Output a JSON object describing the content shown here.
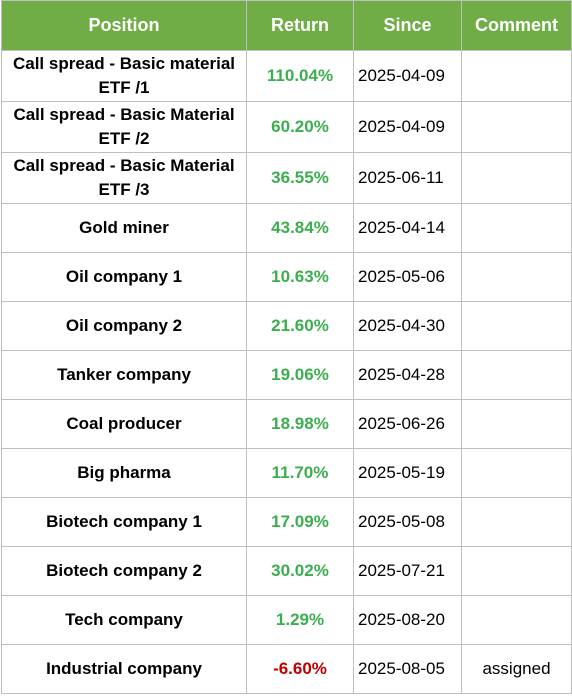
{
  "headers": {
    "position": "Position",
    "return": "Return",
    "since": "Since",
    "comment": "Comment"
  },
  "colors": {
    "header_bg": "#70ad47",
    "positive": "#3cae4f",
    "negative": "#c00000",
    "grid": "#bfbfbf"
  },
  "rows": [
    {
      "position": "Call spread - Basic material ETF /1",
      "return": "110.04%",
      "since": "2025-04-09",
      "comment": "",
      "sign": "pos"
    },
    {
      "position": "Call spread - Basic Material ETF /2",
      "return": "60.20%",
      "since": "2025-04-09",
      "comment": "",
      "sign": "pos"
    },
    {
      "position": "Call spread - Basic Material ETF /3",
      "return": "36.55%",
      "since": "2025-06-11",
      "comment": "",
      "sign": "pos"
    },
    {
      "position": "Gold miner",
      "return": "43.84%",
      "since": "2025-04-14",
      "comment": "",
      "sign": "pos"
    },
    {
      "position": "Oil company 1",
      "return": "10.63%",
      "since": "2025-05-06",
      "comment": "",
      "sign": "pos"
    },
    {
      "position": "Oil company 2",
      "return": "21.60%",
      "since": "2025-04-30",
      "comment": "",
      "sign": "pos"
    },
    {
      "position": "Tanker company",
      "return": "19.06%",
      "since": "2025-04-28",
      "comment": "",
      "sign": "pos"
    },
    {
      "position": "Coal producer",
      "return": "18.98%",
      "since": "2025-06-26",
      "comment": "",
      "sign": "pos"
    },
    {
      "position": "Big pharma",
      "return": "11.70%",
      "since": "2025-05-19",
      "comment": "",
      "sign": "pos"
    },
    {
      "position": "Biotech company 1",
      "return": "17.09%",
      "since": "2025-05-08",
      "comment": "",
      "sign": "pos"
    },
    {
      "position": "Biotech company 2",
      "return": "30.02%",
      "since": "2025-07-21",
      "comment": "",
      "sign": "pos"
    },
    {
      "position": "Tech company",
      "return": "1.29%",
      "since": "2025-08-20",
      "comment": "",
      "sign": "pos"
    },
    {
      "position": "Industrial company",
      "return": "-6.60%",
      "since": "2025-08-05",
      "comment": "assigned",
      "sign": "neg"
    }
  ]
}
